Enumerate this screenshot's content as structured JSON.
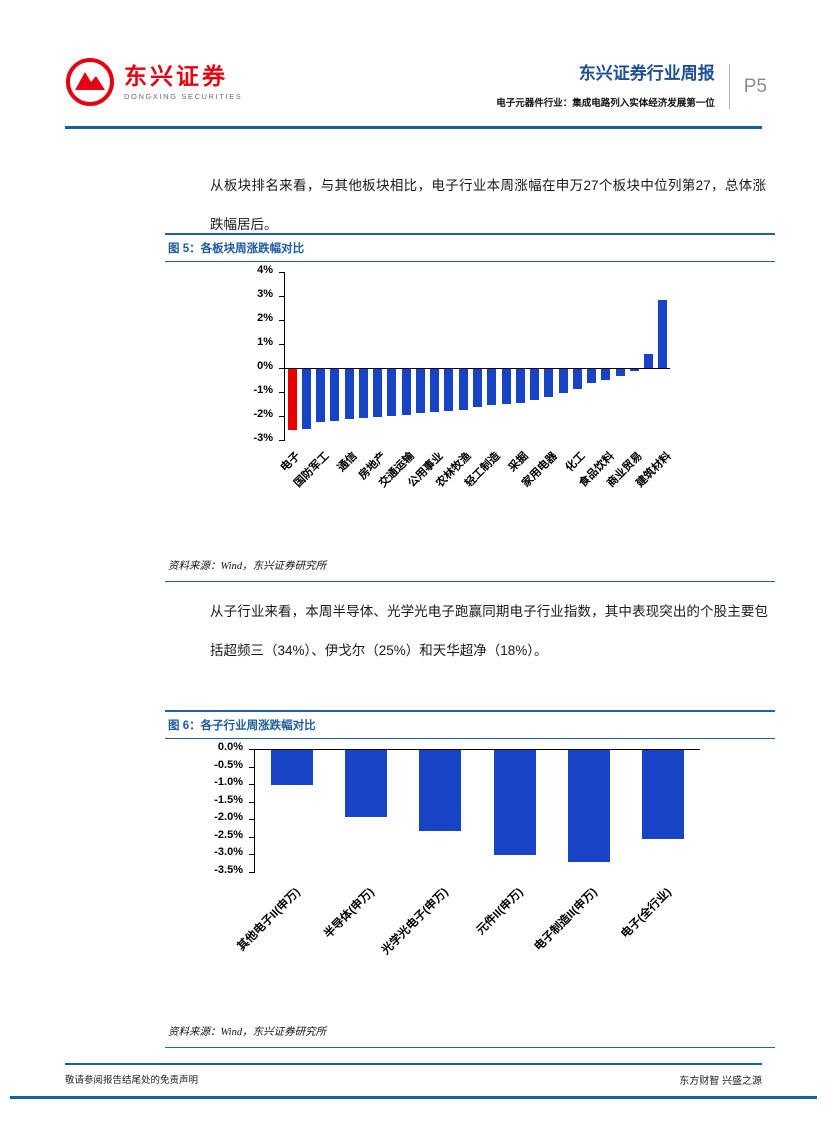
{
  "header": {
    "brand_cn": "东兴证券",
    "brand_en": "DONGXING SECURITIES",
    "report_title": "东兴证券行业周报",
    "page_number": "P5",
    "subtitle": "电子元器件行业：集成电路列入实体经济发展第一位"
  },
  "intro": {
    "paragraph": "从板块排名来看，与其他板块相比，电子行业本周涨幅在申万27个板块中位列第27，总体涨跌幅居后。"
  },
  "figure5": {
    "caption": "图 5：各板块周涨跌幅对比",
    "source": "资料来源：Wind，东兴证券研究所"
  },
  "middle": {
    "paragraph": "从子行业来看，本周半导体、光学光电子跑赢同期电子行业指数，其中表现突出的个股主要包括超频三（34%）、伊戈尔（25%）和天华超净（18%）。"
  },
  "figure6": {
    "caption": "图 6：各子行业周涨跌幅对比",
    "source": "资料来源：Wind，东兴证券研究所"
  },
  "footer": {
    "left": "敬请参阅报告结尾处的免责声明",
    "right": "东方财智 兴盛之源"
  },
  "colors": {
    "accent_blue": "#15619E",
    "caption_blue": "#1E5C9E",
    "bar_blue": "#1744C4",
    "bar_red": "#E80000",
    "logo_red": "#E60012"
  },
  "chart_data": [
    {
      "type": "bar",
      "title": "图 5：各板块周涨跌幅对比",
      "xlabel": "",
      "ylabel": "",
      "ylim": [
        -3,
        4
      ],
      "grid": false,
      "legend": "none",
      "yticks": [
        4,
        3,
        2,
        1,
        0,
        -1,
        -2,
        -3
      ],
      "ytick_labels": [
        "4%",
        "3%",
        "2%",
        "1%",
        "0%",
        "-1%",
        "-2%",
        "-3%"
      ],
      "categories": [
        "电子",
        "国防军工",
        "通信",
        "房地产",
        "交通运输",
        "公用事业",
        "农林牧渔",
        "轻工制造",
        "采掘",
        "家用电器",
        "化工",
        "食品饮料",
        "商业贸易",
        "建筑材料"
      ],
      "labeled_indices": [
        0,
        2,
        4,
        6,
        8,
        10,
        12,
        14,
        16,
        18,
        20,
        22,
        24,
        26
      ],
      "values": [
        -2.55,
        -2.5,
        -2.2,
        -2.15,
        -2.1,
        -2.05,
        -2.0,
        -1.95,
        -1.9,
        -1.85,
        -1.8,
        -1.75,
        -1.7,
        -1.6,
        -1.5,
        -1.45,
        -1.4,
        -1.3,
        -1.15,
        -1.0,
        -0.85,
        -0.6,
        -0.45,
        -0.3,
        -0.1,
        0.6,
        2.85
      ],
      "colors": {
        "default": "#1744C4",
        "highlight": "#E80000"
      },
      "highlight_index": 0
    },
    {
      "type": "bar",
      "title": "图 6：各子行业周涨跌幅对比",
      "xlabel": "",
      "ylabel": "",
      "ylim": [
        -3.5,
        0
      ],
      "grid": false,
      "legend": "none",
      "yticks": [
        0,
        -0.5,
        -1,
        -1.5,
        -2,
        -2.5,
        -3,
        -3.5
      ],
      "ytick_labels": [
        "0.0%",
        "-0.5%",
        "-1.0%",
        "-1.5%",
        "-2.0%",
        "-2.5%",
        "-3.0%",
        "-3.5%"
      ],
      "categories": [
        "其他电子II(申万)",
        "半导体(申万)",
        "光学光电子(申万)",
        "元件II(申万)",
        "电子制造II(申万)",
        "电子(全行业)"
      ],
      "values": [
        -1.0,
        -1.9,
        -2.3,
        -3.0,
        -3.2,
        -2.55
      ],
      "colors": {
        "default": "#1744C4",
        "highlight": "#E80000"
      },
      "highlight_index": -1
    }
  ]
}
